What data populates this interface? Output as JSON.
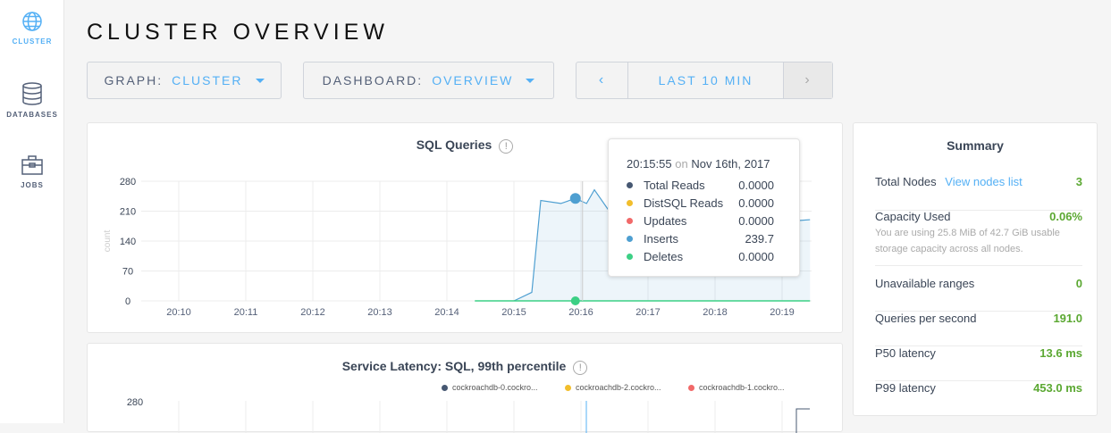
{
  "sidebar": {
    "items": [
      {
        "label": "CLUSTER",
        "icon": "globe-icon",
        "active": true
      },
      {
        "label": "DATABASES",
        "icon": "database-icon"
      },
      {
        "label": "JOBS",
        "icon": "briefcase-icon"
      }
    ]
  },
  "header": {
    "title": "CLUSTER OVERVIEW"
  },
  "controls": {
    "graph_label": "GRAPH:",
    "graph_value": "CLUSTER",
    "dashboard_label": "DASHBOARD:",
    "dashboard_value": "OVERVIEW",
    "time_range": "LAST 10 MIN"
  },
  "colors": {
    "accent": "#54b0f5",
    "good": "#5ba832",
    "total_reads": "#475872",
    "distsql_reads": "#f2be2c",
    "updates": "#f16969",
    "inserts": "#4e9fd1",
    "deletes": "#3cd085"
  },
  "chart_data": [
    {
      "type": "line",
      "title": "SQL Queries",
      "ylabel": "count",
      "ylim": [
        0,
        280
      ],
      "yticks": [
        "0",
        "70",
        "140",
        "210",
        "280"
      ],
      "xticks": [
        "20:10",
        "20:11",
        "20:12",
        "20:13",
        "20:14",
        "20:15",
        "20:16",
        "20:17",
        "20:18",
        "20:19"
      ],
      "grid": true,
      "inserts": {
        "x": [
          "20:15:00",
          "20:15:16",
          "20:15:24",
          "20:15:42",
          "20:15:55",
          "20:16:05",
          "20:16:12",
          "20:16:24",
          "20:16:40",
          "20:17:00",
          "20:17:30",
          "20:18:00",
          "20:18:30",
          "20:19:00",
          "20:19:15",
          "20:19:25"
        ],
        "y": [
          0,
          20,
          235,
          228,
          239.7,
          228,
          260,
          215,
          230,
          225,
          215,
          210,
          200,
          195,
          188,
          190
        ]
      },
      "deletes": {
        "x": [
          "20:14:25",
          "20:19:25"
        ],
        "y": [
          0,
          0
        ]
      },
      "tooltip": {
        "time": "20:15:55",
        "on": "on",
        "date": "Nov 16th, 2017",
        "rows": [
          {
            "name": "Total Reads",
            "value": "0.0000",
            "color": "#475872"
          },
          {
            "name": "DistSQL Reads",
            "value": "0.0000",
            "color": "#f2be2c"
          },
          {
            "name": "Updates",
            "value": "0.0000",
            "color": "#f16969"
          },
          {
            "name": "Inserts",
            "value": "239.7",
            "color": "#4e9fd1"
          },
          {
            "name": "Deletes",
            "value": "0.0000",
            "color": "#3cd085"
          }
        ]
      }
    },
    {
      "type": "line",
      "title": "Service Latency: SQL, 99th percentile",
      "yticks": [
        "280"
      ],
      "legend": [
        {
          "name": "cockroachdb-0.cockro...",
          "color": "#475872"
        },
        {
          "name": "cockroachdb-2.cockro...",
          "color": "#f2be2c"
        },
        {
          "name": "cockroachdb-1.cockro...",
          "color": "#f16969"
        }
      ]
    }
  ],
  "summary": {
    "title": "Summary",
    "total_nodes_label": "Total Nodes",
    "view_nodes_link": "View nodes list",
    "total_nodes": "3",
    "capacity_label": "Capacity Used",
    "capacity_value": "0.06%",
    "capacity_note": "You are using 25.8 MiB of 42.7 GiB usable storage capacity across all nodes.",
    "rows": [
      {
        "label": "Unavailable ranges",
        "value": "0"
      },
      {
        "label": "Queries per second",
        "value": "191.0"
      },
      {
        "label": "P50 latency",
        "value": "13.6 ms"
      },
      {
        "label": "P99 latency",
        "value": "453.0 ms"
      }
    ]
  }
}
